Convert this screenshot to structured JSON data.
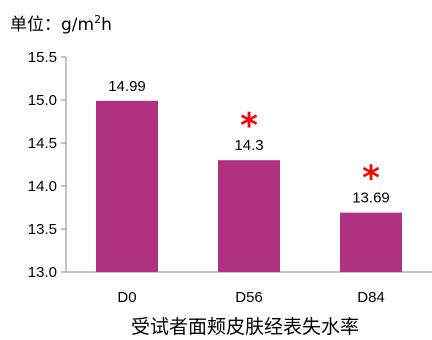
{
  "chart_data": {
    "type": "bar",
    "categories": [
      "D0",
      "D56",
      "D84"
    ],
    "values": [
      14.99,
      14.3,
      13.69
    ],
    "value_labels": [
      "14.99",
      "14.3",
      "13.69"
    ],
    "significance_markers": [
      "",
      "*",
      "*"
    ],
    "ylim": [
      13.0,
      15.5
    ],
    "yticks": [
      "13.0",
      "13.5",
      "14.0",
      "14.5",
      "15.0",
      "15.5"
    ],
    "ylabel": "",
    "xlabel": "受试者面颊皮肤经表失水率",
    "unit": {
      "prefix": "单位：g/m",
      "sup": "2",
      "suffix": "h"
    },
    "grid": false,
    "bar_color": "#b0317f",
    "marker_color": "#ff0000"
  }
}
